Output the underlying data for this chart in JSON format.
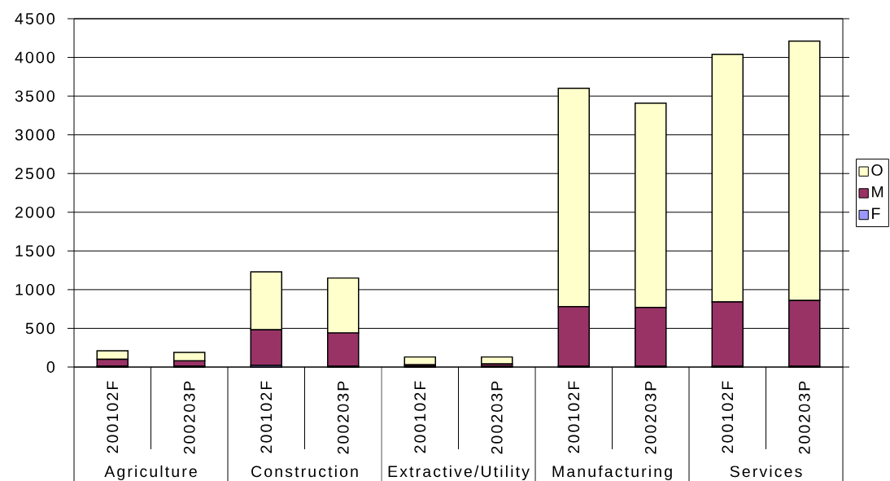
{
  "chart_data": {
    "type": "bar",
    "stacked": true,
    "categories": [
      "200102F",
      "200203P",
      "200102F",
      "200203P",
      "200102F",
      "200203P",
      "200102F",
      "200203P",
      "200102F",
      "200203P"
    ],
    "annotations": [
      "Agriculture",
      "Construction",
      "Extractive/Utility",
      "Manufacturing",
      "Services"
    ],
    "series": [
      {
        "name": "F",
        "color": "#9999ff",
        "values": [
          10,
          10,
          20,
          10,
          10,
          10,
          10,
          10,
          10,
          10
        ]
      },
      {
        "name": "M",
        "color": "#993366",
        "values": [
          90,
          70,
          460,
          430,
          20,
          30,
          770,
          760,
          830,
          850
        ]
      },
      {
        "name": "O",
        "color": "#ffffcc",
        "values": [
          110,
          110,
          750,
          710,
          100,
          90,
          2820,
          2640,
          3200,
          3350
        ]
      }
    ],
    "ylim": [
      0,
      4500
    ],
    "yticks": [
      0,
      500,
      1000,
      1500,
      2000,
      2500,
      3000,
      3500,
      4000,
      4500
    ],
    "grid": "y",
    "legend": "right"
  }
}
